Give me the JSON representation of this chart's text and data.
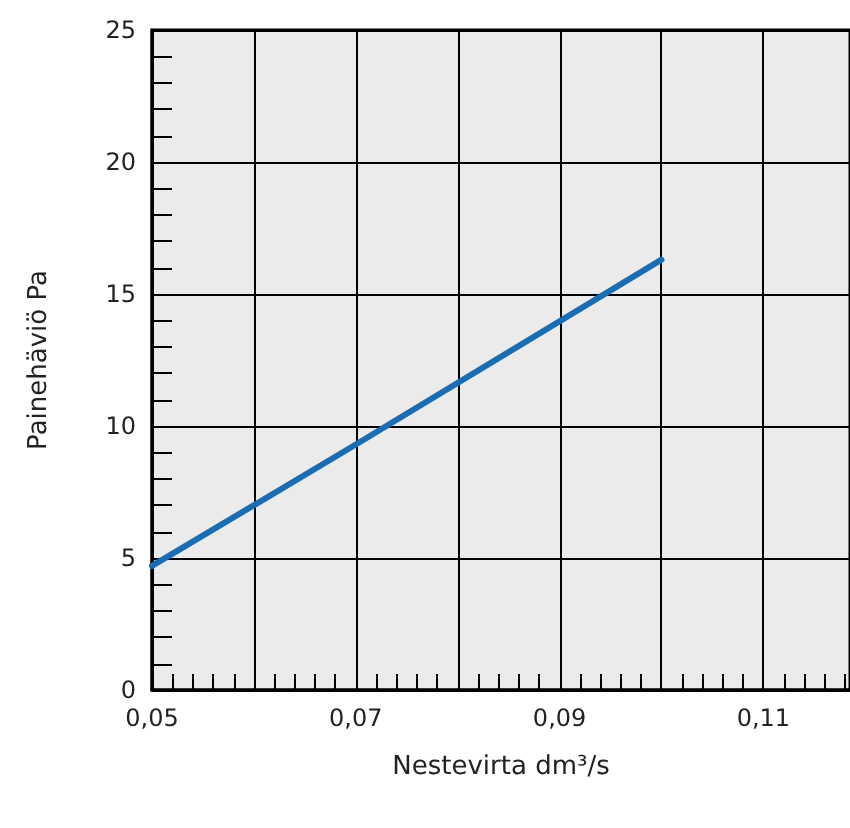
{
  "chart_data": {
    "type": "line",
    "xlabel": "Nestevirta dm³/s",
    "ylabel": "Painehäviö Pa",
    "x": [
      0.05,
      0.07,
      0.1
    ],
    "series": [
      {
        "color": "#1a6db3",
        "values": [
          4.7,
          9.3,
          16.3
        ]
      }
    ],
    "xlim": [
      0.05,
      0.1185
    ],
    "xticks": [
      {
        "value": 0.05,
        "label": "0,05"
      },
      {
        "value": 0.06,
        "label": null
      },
      {
        "value": 0.07,
        "label": "0,07"
      },
      {
        "value": 0.08,
        "label": null
      },
      {
        "value": 0.09,
        "label": "0,09"
      },
      {
        "value": 0.1,
        "label": null
      },
      {
        "value": 0.11,
        "label": "0,11"
      }
    ],
    "ylim": [
      0,
      25
    ],
    "yticks": [
      0,
      5,
      10,
      15,
      20,
      25
    ],
    "grid": true,
    "marker": "none",
    "line_style": "solid"
  }
}
